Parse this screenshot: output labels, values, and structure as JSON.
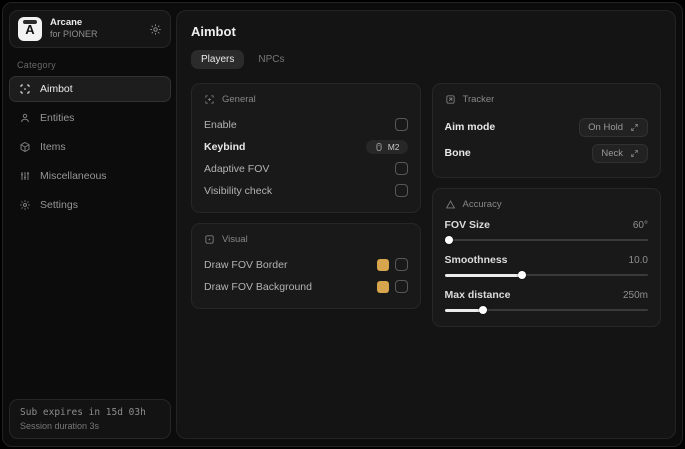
{
  "app": {
    "brand": {
      "logo_letter": "A",
      "name": "Arcane",
      "subtitle": "for PIONER"
    },
    "sidebar": {
      "category_label": "Category",
      "items": [
        {
          "label": "Aimbot",
          "icon": "crosshair-icon",
          "active": true
        },
        {
          "label": "Entities",
          "icon": "person-icon",
          "active": false
        },
        {
          "label": "Items",
          "icon": "cube-icon",
          "active": false
        },
        {
          "label": "Miscellaneous",
          "icon": "sliders-icon",
          "active": false
        },
        {
          "label": "Settings",
          "icon": "gear-icon",
          "active": false
        }
      ],
      "subscription": {
        "line1": "Sub expires in 15d 03h",
        "line2": "Session duration 3s"
      }
    },
    "main": {
      "title": "Aimbot",
      "tabs": [
        {
          "label": "Players",
          "active": true
        },
        {
          "label": "NPCs",
          "active": false
        }
      ],
      "panels": {
        "general": {
          "title": "General",
          "rows": [
            {
              "label": "Enable",
              "control": "checkbox",
              "checked": false
            },
            {
              "label": "Keybind",
              "control": "keybind",
              "value": "M2"
            },
            {
              "label": "Adaptive FOV",
              "control": "checkbox",
              "checked": false
            },
            {
              "label": "Visibility check",
              "control": "checkbox",
              "checked": false
            }
          ]
        },
        "visual": {
          "title": "Visual",
          "accent_color": "#d7a54e",
          "rows": [
            {
              "label": "Draw FOV Border",
              "control": "color-checkbox",
              "color": "#d7a54e",
              "checked": false
            },
            {
              "label": "Draw FOV Background",
              "control": "color-checkbox",
              "color": "#d7a54e",
              "checked": false
            }
          ]
        },
        "tracker": {
          "title": "Tracker",
          "rows": [
            {
              "label": "Aim mode",
              "value": "On Hold"
            },
            {
              "label": "Bone",
              "value": "Neck"
            }
          ]
        },
        "accuracy": {
          "title": "Accuracy",
          "sliders": [
            {
              "label": "FOV Size",
              "value": "60°",
              "percent": 2
            },
            {
              "label": "Smoothness",
              "value": "10.0",
              "percent": 38
            },
            {
              "label": "Max distance",
              "value": "250m",
              "percent": 19
            }
          ]
        }
      }
    }
  }
}
